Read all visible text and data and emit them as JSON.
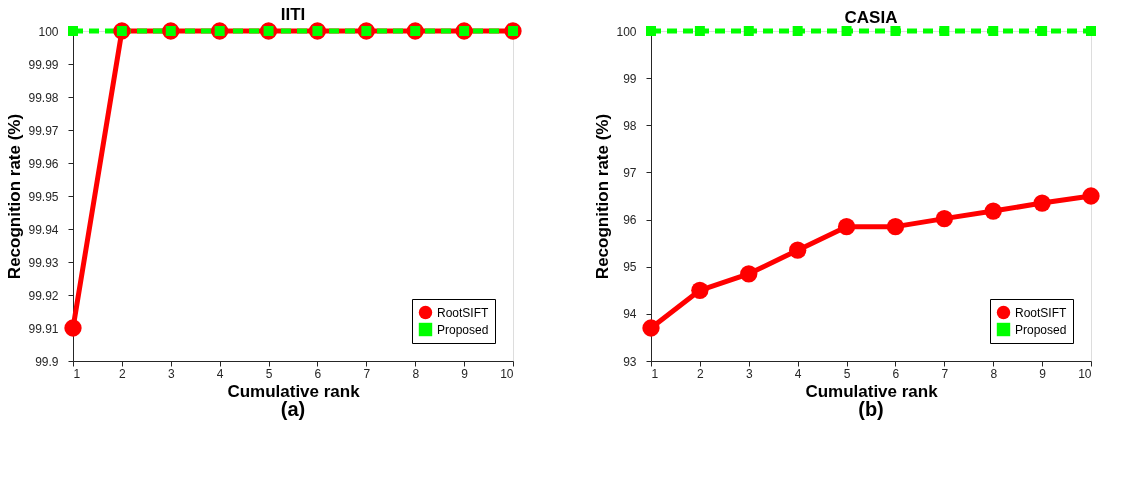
{
  "chart_data": [
    {
      "type": "line",
      "title": "IITI",
      "xlabel": "Cumulative rank",
      "ylabel": "Recognition rate (%)",
      "annotations": [
        "(a)"
      ],
      "x": [
        1,
        2,
        3,
        4,
        5,
        6,
        7,
        8,
        9,
        10
      ],
      "xlim": [
        1,
        10
      ],
      "xticks": [
        1,
        2,
        3,
        4,
        5,
        6,
        7,
        8,
        9,
        10
      ],
      "ylim": [
        99.9,
        100
      ],
      "yticks": [
        99.9,
        99.91,
        99.92,
        99.93,
        99.94,
        99.95,
        99.96,
        99.97,
        99.98,
        99.99,
        100
      ],
      "grid": false,
      "legend": "bottom right",
      "series": [
        {
          "name": "RootSIFT",
          "color": "#ff0000",
          "marker": "circle",
          "line_style": "solid",
          "values": [
            99.91,
            100,
            100,
            100,
            100,
            100,
            100,
            100,
            100,
            100
          ]
        },
        {
          "name": "Proposed",
          "color": "#00ff00",
          "marker": "square",
          "line_style": "dashed",
          "values": [
            100,
            100,
            100,
            100,
            100,
            100,
            100,
            100,
            100,
            100
          ]
        }
      ]
    },
    {
      "type": "line",
      "title": "CASIA",
      "xlabel": "Cumulative rank",
      "ylabel": "Recognition rate (%)",
      "annotations": [
        "(b)"
      ],
      "x": [
        1,
        2,
        3,
        4,
        5,
        6,
        7,
        8,
        9,
        10
      ],
      "xlim": [
        1,
        10
      ],
      "xticks": [
        1,
        2,
        3,
        4,
        5,
        6,
        7,
        8,
        9,
        10
      ],
      "ylim": [
        93,
        100
      ],
      "yticks": [
        93,
        94,
        95,
        96,
        97,
        98,
        99,
        100
      ],
      "grid": false,
      "legend": "bottom right",
      "series": [
        {
          "name": "RootSIFT",
          "color": "#ff0000",
          "marker": "circle",
          "line_style": "solid",
          "values": [
            93.7,
            94.5,
            94.85,
            95.35,
            95.85,
            95.85,
            96.02,
            96.18,
            96.35,
            96.5
          ]
        },
        {
          "name": "Proposed",
          "color": "#00ff00",
          "marker": "square",
          "line_style": "dashed",
          "values": [
            100,
            100,
            100,
            100,
            100,
            100,
            100,
            100,
            100,
            100
          ]
        }
      ]
    }
  ]
}
